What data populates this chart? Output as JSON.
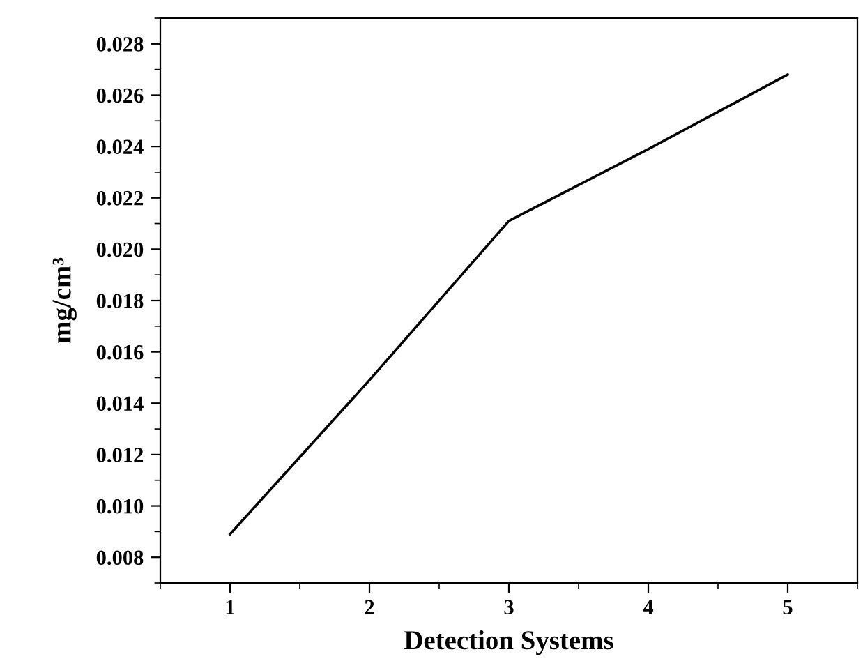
{
  "chart_data": {
    "type": "line",
    "xlabel": "Detection Systems",
    "ylabel": "mg/cm³",
    "x": [
      1,
      2,
      3,
      4,
      5
    ],
    "series": [
      {
        "color": "#000000",
        "values": [
          0.0089,
          0.0149,
          0.0211,
          0.0239,
          0.0268
        ]
      }
    ],
    "xlim": [
      0.5,
      5.5
    ],
    "xticks": [
      1,
      2,
      3,
      4,
      5
    ],
    "ylim": [
      0.007,
      0.029
    ],
    "yticks": [
      0.008,
      {
        "value": 0.01,
        "label": "0.010"
      },
      0.012,
      0.014,
      0.016,
      0.018,
      {
        "value": 0.02,
        "label": "0.020"
      },
      0.022,
      0.024,
      0.026,
      0.028
    ],
    "grid": false,
    "marker": "none",
    "line_style": "solid"
  }
}
